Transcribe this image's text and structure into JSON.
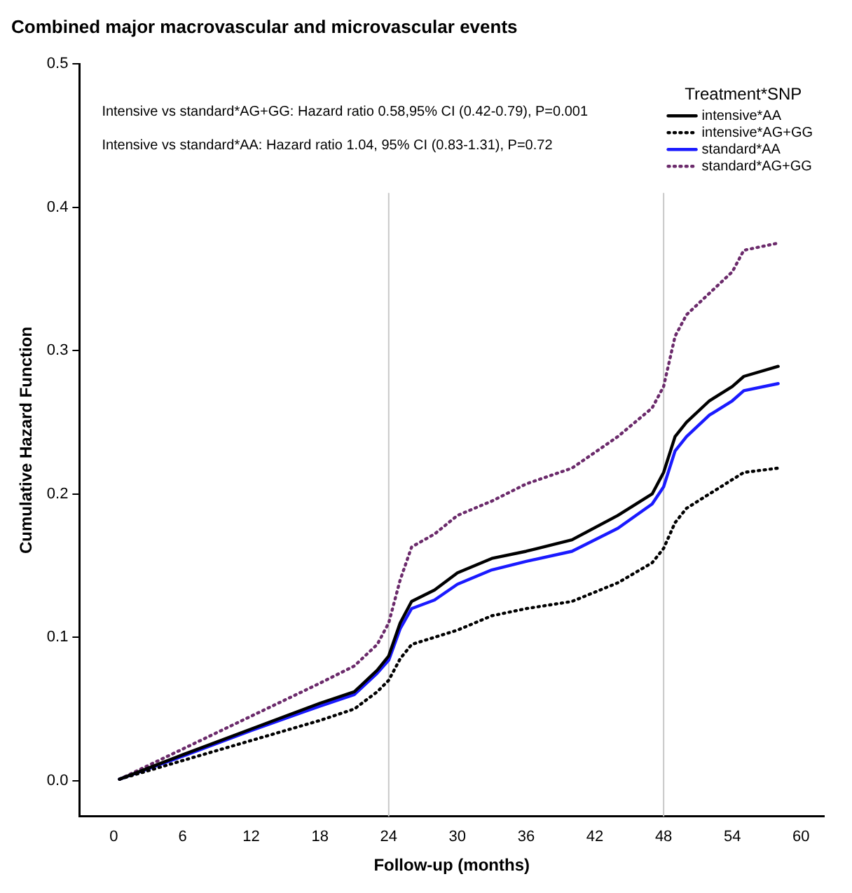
{
  "chart_data": {
    "type": "line",
    "title": "Combined major macrovascular and microvascular events",
    "xlabel": "Follow-up (months)",
    "ylabel": "Cumulative Hazard Function",
    "legend_title": "Treatment*SNP",
    "legend": "top right",
    "grid": false,
    "marker": "none",
    "annotations": [
      "Intensive vs standard*AG+GG: Hazard ratio 0.58,95% CI (0.42-0.79), P=0.001",
      "Intensive vs standard*AA: Hazard ratio 1.04, 95% CI (0.83-1.31), P=0.72"
    ],
    "x": [
      0.5,
      6,
      12,
      18,
      21,
      23,
      24,
      25,
      26,
      28,
      30,
      33,
      36,
      40,
      44,
      47,
      48,
      49,
      50,
      52,
      54,
      55,
      58
    ],
    "xlim": [
      -3,
      62
    ],
    "xticks": [
      0,
      6,
      12,
      18,
      24,
      30,
      36,
      42,
      48,
      54,
      60
    ],
    "ylim": [
      -0.025,
      0.5
    ],
    "yticks": [
      {
        "value": 0,
        "label": "0.0"
      },
      0.1,
      0.2,
      0.3,
      0.4,
      0.5
    ],
    "ref_lines": [
      {
        "axis": "x",
        "value": 24,
        "color": "#c8c8c8"
      },
      {
        "axis": "x",
        "value": 48,
        "color": "#c8c8c8"
      }
    ],
    "series": [
      {
        "name": "intensive*AA",
        "color": "#000000",
        "line_style": "solid",
        "values": [
          0.001,
          0.018,
          0.036,
          0.054,
          0.062,
          0.077,
          0.087,
          0.11,
          0.125,
          0.133,
          0.145,
          0.155,
          0.16,
          0.168,
          0.185,
          0.2,
          0.215,
          0.24,
          0.25,
          0.265,
          0.275,
          0.282,
          0.289
        ]
      },
      {
        "name": "intensive*AG+GG",
        "color": "#000000",
        "line_style": "dotted",
        "values": [
          0.001,
          0.014,
          0.028,
          0.042,
          0.05,
          0.062,
          0.07,
          0.085,
          0.095,
          0.1,
          0.105,
          0.115,
          0.12,
          0.125,
          0.138,
          0.152,
          0.162,
          0.18,
          0.19,
          0.2,
          0.21,
          0.215,
          0.218
        ]
      },
      {
        "name": "standard*AA",
        "color": "#1a1aff",
        "line_style": "solid",
        "values": [
          0.001,
          0.017,
          0.035,
          0.052,
          0.06,
          0.075,
          0.084,
          0.106,
          0.12,
          0.126,
          0.137,
          0.147,
          0.153,
          0.16,
          0.176,
          0.193,
          0.205,
          0.23,
          0.24,
          0.255,
          0.265,
          0.272,
          0.277
        ]
      },
      {
        "name": "standard*AG+GG",
        "color": "#6b2a6b",
        "line_style": "dotted",
        "values": [
          0.001,
          0.022,
          0.045,
          0.068,
          0.08,
          0.095,
          0.11,
          0.14,
          0.163,
          0.172,
          0.185,
          0.195,
          0.207,
          0.218,
          0.24,
          0.26,
          0.275,
          0.31,
          0.325,
          0.34,
          0.355,
          0.37,
          0.375
        ]
      }
    ]
  }
}
